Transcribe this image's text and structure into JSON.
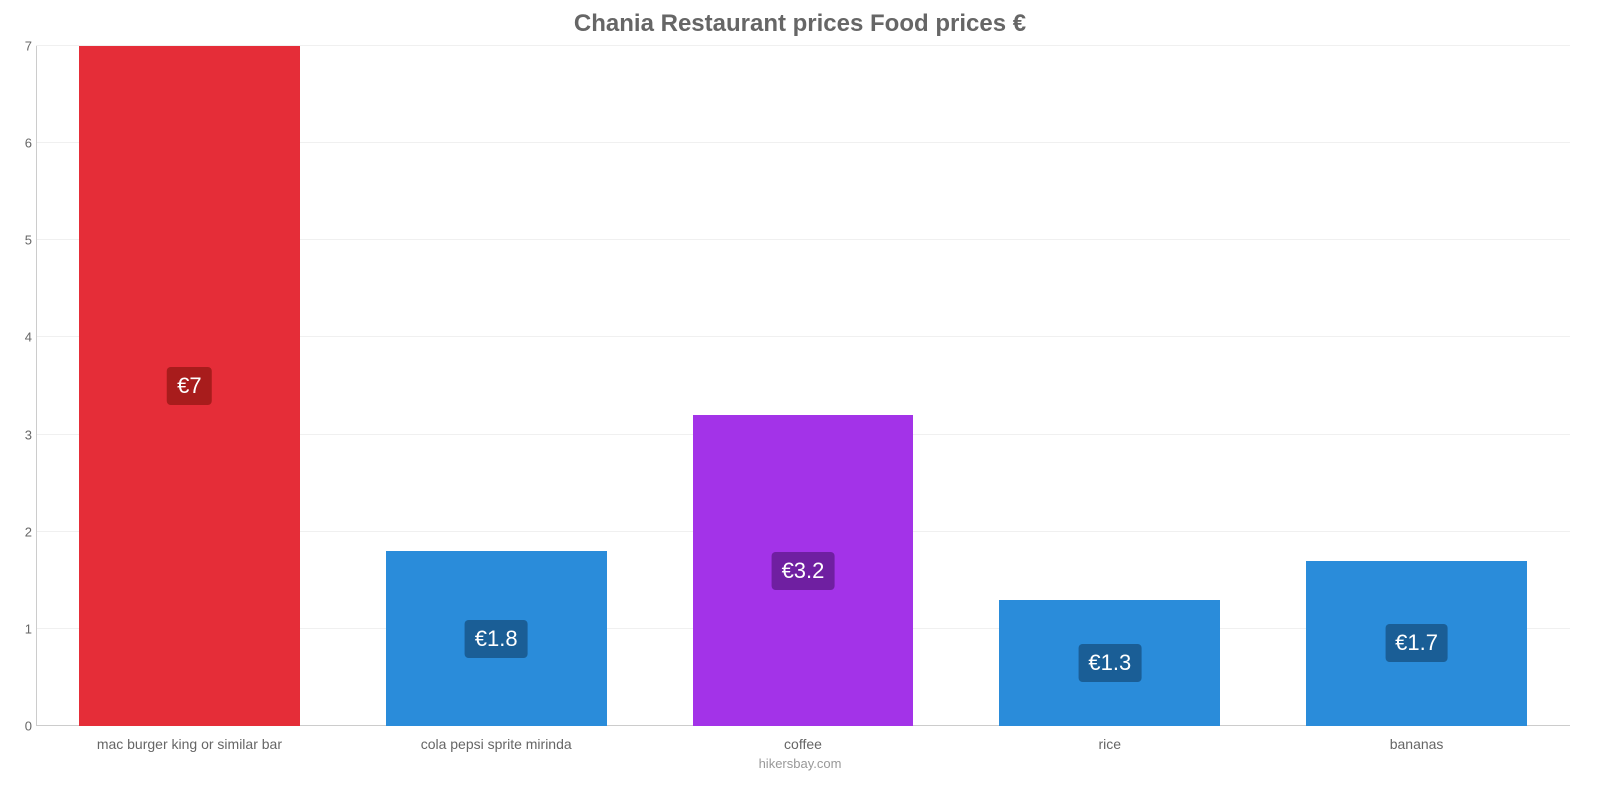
{
  "chart": {
    "type": "bar",
    "title": "Chania Restaurant prices Food prices €",
    "title_fontsize": 24,
    "title_color": "#666666",
    "background_color": "#ffffff",
    "grid_color": "#f0f0f0",
    "axis_color": "#cccccc",
    "tick_label_color": "#666666",
    "tick_fontsize": 13,
    "xlabel_fontsize": 14,
    "ylim": [
      0,
      7
    ],
    "yticks": [
      0,
      1,
      2,
      3,
      4,
      5,
      6,
      7
    ],
    "bar_width": 0.72,
    "footer": "hikersbay.com",
    "footer_color": "#999999",
    "categories": [
      "mac burger king or similar bar",
      "cola pepsi sprite mirinda",
      "coffee",
      "rice",
      "bananas"
    ],
    "values": [
      7,
      1.8,
      3.2,
      1.3,
      1.7
    ],
    "value_labels": [
      "€7",
      "€1.8",
      "€3.2",
      "€1.3",
      "€1.7"
    ],
    "bar_colors": [
      "#e52d38",
      "#2a8cda",
      "#a333e8",
      "#2a8cda",
      "#2a8cda"
    ],
    "badge_colors": [
      "#a81c1c",
      "#1a5e96",
      "#6f1fa1",
      "#1a5e96",
      "#1a5e96"
    ],
    "badge_text_color": "#ffffff",
    "value_label_fontsize": 22
  }
}
